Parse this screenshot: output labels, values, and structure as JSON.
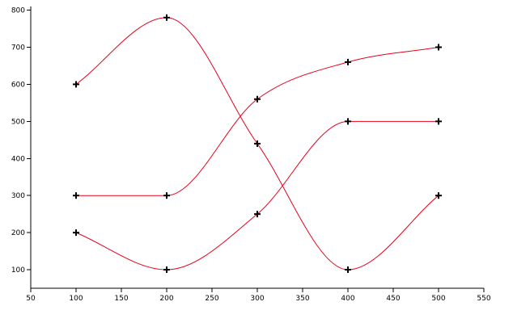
{
  "chart_data": {
    "type": "line",
    "title": "",
    "xlabel": "",
    "ylabel": "",
    "xlim": [
      50,
      550
    ],
    "ylim": [
      50,
      810
    ],
    "x_ticks": [
      50,
      100,
      150,
      200,
      250,
      300,
      350,
      400,
      450,
      500,
      550
    ],
    "y_ticks": [
      100,
      200,
      300,
      400,
      500,
      600,
      700,
      800
    ],
    "grid": false,
    "curve": "smooth",
    "line_color": "#e8001c",
    "marker": "plus",
    "marker_color": "#000000",
    "series": [
      {
        "x": [
          100,
          200,
          300,
          400,
          500
        ],
        "y": [
          600,
          780,
          440,
          100,
          300
        ]
      },
      {
        "x": [
          100,
          200,
          300,
          400,
          500
        ],
        "y": [
          300,
          300,
          560,
          660,
          700
        ]
      },
      {
        "x": [
          100,
          200,
          300,
          400,
          500
        ],
        "y": [
          200,
          100,
          250,
          500,
          500
        ]
      }
    ]
  }
}
